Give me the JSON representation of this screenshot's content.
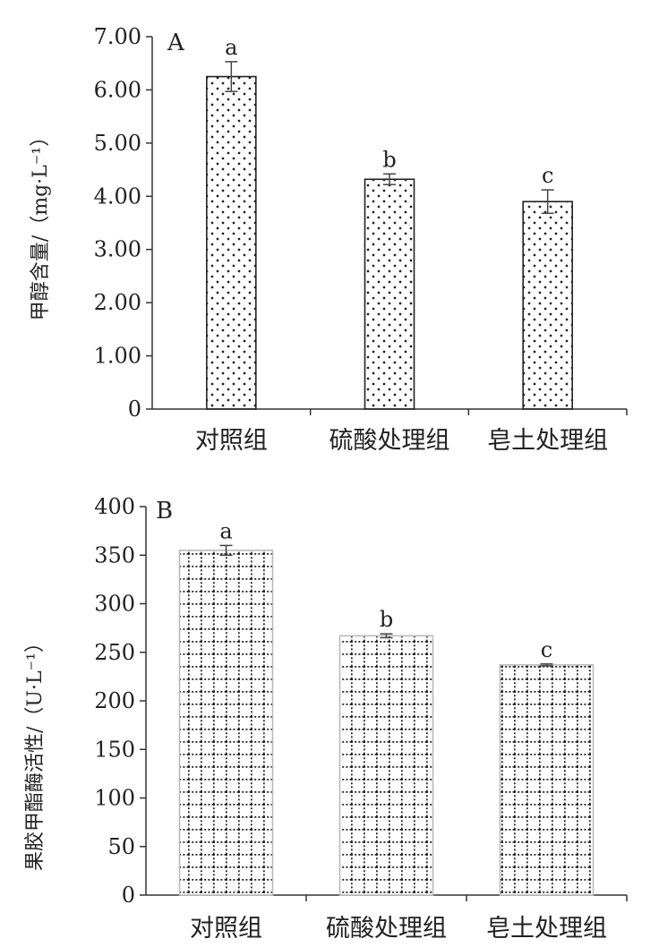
{
  "chart_data": [
    {
      "type": "bar",
      "panel_label": "A",
      "ylabel": "甲醇含量/（mg·L⁻¹）",
      "ylim": [
        0,
        7
      ],
      "yticks": [
        "0",
        "1.00",
        "2.00",
        "3.00",
        "4.00",
        "5.00",
        "6.00",
        "7.00"
      ],
      "categories": [
        "对照组",
        "硫酸处理组",
        "皂土处理组"
      ],
      "values": [
        6.25,
        4.32,
        3.9
      ],
      "errors": [
        0.28,
        0.1,
        0.22
      ],
      "significance": [
        "a",
        "b",
        "c"
      ],
      "bar_pattern": "dots",
      "grid": false
    },
    {
      "type": "bar",
      "panel_label": "B",
      "ylabel": "果胶甲酯酶活性/（U·L⁻¹）",
      "ylim": [
        0,
        400
      ],
      "yticks": [
        "0",
        "50",
        "100",
        "150",
        "200",
        "250",
        "300",
        "350",
        "400"
      ],
      "categories": [
        "对照组",
        "硫酸处理组",
        "皂土处理组"
      ],
      "values": [
        355,
        267,
        237
      ],
      "errors": [
        5,
        2,
        1
      ],
      "significance": [
        "a",
        "b",
        "c"
      ],
      "bar_pattern": "dotted-grid",
      "grid": false
    }
  ]
}
